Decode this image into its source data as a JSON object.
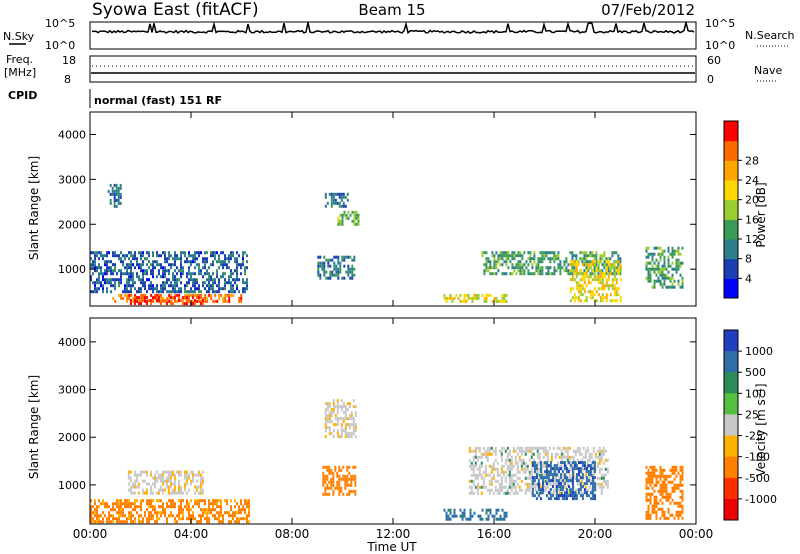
{
  "header": {
    "station": "Syowa East (fitACF)",
    "beam": "Beam 15",
    "date": "07/Feb/2012"
  },
  "top_panels": {
    "nsky_label": "N.Sky",
    "nsky_ticks": [
      "10^5",
      "10^0"
    ],
    "nsearch_label": "N.Search",
    "nsearch_ticks": [
      "10^5",
      "10^0"
    ],
    "freq_label_1": "Freq.",
    "freq_label_2": "[MHz]",
    "freq_ticks": [
      "18",
      "8"
    ],
    "nave_label": "Nave",
    "nave_ticks": [
      "60",
      "0"
    ],
    "cpid_label": "CPID",
    "cpid_text": "normal (fast) 151 RF"
  },
  "axes": {
    "ylabel": "Slant Range [km]",
    "xlabel": "Time UT",
    "y_ticks": [
      "1000",
      "2000",
      "3000",
      "4000"
    ],
    "x_ticks": [
      "00:00",
      "04:00",
      "08:00",
      "12:00",
      "16:00",
      "20:00",
      "00:00"
    ]
  },
  "power_colorbar": {
    "label": "Power [dB]",
    "ticks": [
      "4",
      "8",
      "12",
      "16",
      "20",
      "24",
      "28"
    ],
    "colors": [
      "#0000ff",
      "#1a3fb0",
      "#2e7d8c",
      "#3a9a56",
      "#9acd32",
      "#ffd700",
      "#ffa500",
      "#ff6a00",
      "#ff0000"
    ]
  },
  "velocity_colorbar": {
    "label": "Velocity [m s⁻¹]",
    "ticks": [
      "1000",
      "500",
      "100",
      "25",
      "-25",
      "-100",
      "-500",
      "-1000"
    ],
    "colors": [
      "#1f3fbf",
      "#2e6fa8",
      "#2e8b57",
      "#55c040",
      "#c8c8c8",
      "#ffb000",
      "#ff8000",
      "#ff3000",
      "#ee0000"
    ]
  },
  "chart_data": [
    {
      "type": "heatmap",
      "name": "Power",
      "xlim": [
        0,
        24
      ],
      "ylim": [
        180,
        4500
      ],
      "units": "dB",
      "regions": [
        {
          "t": [
            0.8,
            6.0
          ],
          "r": [
            250,
            450
          ],
          "value": 26
        },
        {
          "t": [
            1.5,
            4.5
          ],
          "r": [
            250,
            400
          ],
          "value": 29
        },
        {
          "t": [
            0.0,
            6.2
          ],
          "r": [
            500,
            1400
          ],
          "value": 7
        },
        {
          "t": [
            0.7,
            1.2
          ],
          "r": [
            2400,
            2900
          ],
          "value": 8
        },
        {
          "t": [
            9.3,
            10.2
          ],
          "r": [
            2400,
            2700
          ],
          "value": 8
        },
        {
          "t": [
            9.8,
            10.6
          ],
          "r": [
            2000,
            2300
          ],
          "value": 14
        },
        {
          "t": [
            9.0,
            10.5
          ],
          "r": [
            800,
            1300
          ],
          "value": 9
        },
        {
          "t": [
            14.0,
            16.5
          ],
          "r": [
            250,
            450
          ],
          "value": 18
        },
        {
          "t": [
            15.5,
            21.0
          ],
          "r": [
            900,
            1400
          ],
          "value": 12
        },
        {
          "t": [
            19.0,
            21.0
          ],
          "r": [
            300,
            1200
          ],
          "value": 19
        },
        {
          "t": [
            22.0,
            23.5
          ],
          "r": [
            600,
            1500
          ],
          "value": 12
        }
      ]
    },
    {
      "type": "heatmap",
      "name": "Velocity",
      "xlim": [
        0,
        24
      ],
      "ylim": [
        180,
        4500
      ],
      "units": "m s-1",
      "regions": [
        {
          "t": [
            0.0,
            6.3
          ],
          "r": [
            250,
            700
          ],
          "value": -150
        },
        {
          "t": [
            1.5,
            4.5
          ],
          "r": [
            800,
            1300
          ],
          "value": -10
        },
        {
          "t": [
            9.3,
            10.5
          ],
          "r": [
            2000,
            2800
          ],
          "value": -10
        },
        {
          "t": [
            9.2,
            10.5
          ],
          "r": [
            800,
            1400
          ],
          "value": -200
        },
        {
          "t": [
            14.0,
            16.5
          ],
          "r": [
            250,
            500
          ],
          "value": 150
        },
        {
          "t": [
            15.0,
            20.5
          ],
          "r": [
            800,
            1800
          ],
          "value": 0
        },
        {
          "t": [
            17.5,
            20.0
          ],
          "r": [
            700,
            1500
          ],
          "value": 400
        },
        {
          "t": [
            22.0,
            23.5
          ],
          "r": [
            300,
            1400
          ],
          "value": -200
        }
      ]
    }
  ]
}
